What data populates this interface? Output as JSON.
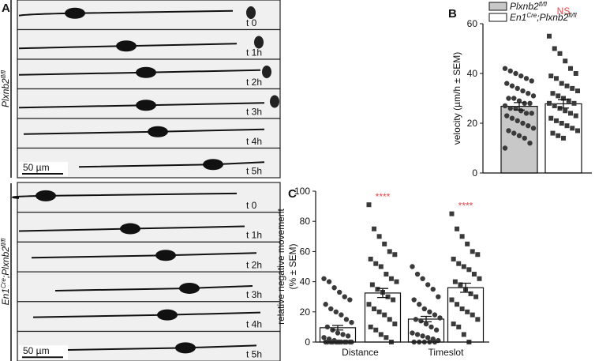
{
  "panel_a": {
    "label": "A",
    "conditions": [
      {
        "label": [
          {
            "t": "Plxnb2"
          },
          {
            "t": "fl/fl",
            "sup": true
          }
        ],
        "frames": [
          "t 0",
          "t 1h",
          "t 2h",
          "t 3h",
          "t 4h",
          "t 5h"
        ],
        "scale_bar": "50 µm"
      },
      {
        "label": [
          {
            "t": "En1"
          },
          {
            "t": "Cre",
            "sup": true
          },
          {
            "t": ";Plxnb2"
          },
          {
            "t": "fl/fl",
            "sup": true
          }
        ],
        "frames": [
          "t 0",
          "t 1h",
          "t 2h",
          "t 3h",
          "t 4h",
          "t 5h"
        ],
        "scale_bar": "50 µm"
      }
    ]
  },
  "chart_data": [
    {
      "type": "bar",
      "panel": "B",
      "y_label": "velocity (µm/h ± SEM)",
      "categories": [
        null
      ],
      "ylim": [
        0,
        60
      ],
      "yticks": [
        0,
        20,
        40,
        60
      ],
      "annotations": [
        {
          "text": "NS",
          "series": 1,
          "category": 0,
          "color": "#e8474b"
        }
      ],
      "series": [
        {
          "name": [
            {
              "t": "Plxnb2"
            },
            {
              "t": "fl/fl",
              "sup": true
            }
          ],
          "color": "#c8c8c8",
          "marker": "circle",
          "values": [
            26.8
          ],
          "errors": [
            1.5
          ],
          "points": [
            [
              42,
              41,
              40,
              39,
              38,
              37,
              36,
              35,
              34,
              33,
              32,
              31,
              30,
              30,
              29,
              28,
              28,
              27,
              26,
              26,
              25,
              24,
              24,
              23,
              22,
              21,
              20,
              19,
              18,
              17,
              16,
              15,
              14,
              12,
              10
            ]
          ]
        },
        {
          "name": [
            {
              "t": "En1"
            },
            {
              "t": "Cre",
              "sup": true
            },
            {
              "t": ";Plxnb2"
            },
            {
              "t": "fl/fl",
              "sup": true
            }
          ],
          "color": "#ffffff",
          "marker": "square",
          "values": [
            27.8
          ],
          "errors": [
            1.7
          ],
          "points": [
            [
              55,
              50,
              48,
              45,
              42,
              40,
              39,
              38,
              36,
              35,
              34,
              33,
              32,
              31,
              30,
              29,
              28,
              28,
              27,
              26,
              25,
              24,
              23,
              22,
              21,
              20,
              19,
              18,
              17,
              16,
              15,
              14
            ]
          ]
        }
      ]
    },
    {
      "type": "bar",
      "panel": "C",
      "y_label": [
        "relative negative movement",
        "(% ± SEM)"
      ],
      "categories": [
        "Distance",
        "Timeslot"
      ],
      "ylim": [
        0,
        100
      ],
      "yticks": [
        0,
        20,
        40,
        60,
        80,
        100
      ],
      "annotations": [
        {
          "text": "****",
          "series": 1,
          "category": 0,
          "color": "#e8474b"
        },
        {
          "text": "****",
          "series": 1,
          "category": 1,
          "color": "#e8474b"
        }
      ],
      "series": [
        {
          "color": "#6b6b6b",
          "marker": "circle",
          "fill_bar": "#ffffff",
          "values": [
            9.5,
            15.2
          ],
          "errors": [
            1.5,
            1.8
          ],
          "points": [
            [
              42,
              40,
              36,
              33,
              30,
              28,
              25,
              22,
              20,
              18,
              15,
              13,
              10,
              8,
              6,
              5,
              4,
              3,
              2,
              1,
              0,
              0,
              0,
              0,
              0,
              0,
              0,
              0,
              0,
              0,
              0,
              0
            ],
            [
              50,
              45,
              42,
              38,
              35,
              30,
              28,
              25,
              22,
              20,
              18,
              16,
              15,
              14,
              12,
              10,
              8,
              6,
              5,
              4,
              3,
              2,
              1,
              0,
              0,
              0,
              0,
              0
            ]
          ]
        },
        {
          "color": "#ffffff",
          "marker": "square",
          "values": [
            32.5,
            36
          ],
          "errors": [
            3,
            3
          ],
          "points": [
            [
              91,
              75,
              70,
              65,
              60,
              58,
              55,
              52,
              50,
              45,
              42,
              40,
              38,
              35,
              33,
              30,
              28,
              25,
              22,
              20,
              18,
              15,
              12,
              10,
              8,
              5,
              3,
              0
            ],
            [
              85,
              75,
              70,
              65,
              60,
              58,
              55,
              52,
              50,
              48,
              45,
              42,
              40,
              38,
              35,
              32,
              30,
              28,
              25,
              22,
              20,
              18,
              15,
              12,
              10,
              5,
              0
            ]
          ]
        }
      ]
    }
  ]
}
